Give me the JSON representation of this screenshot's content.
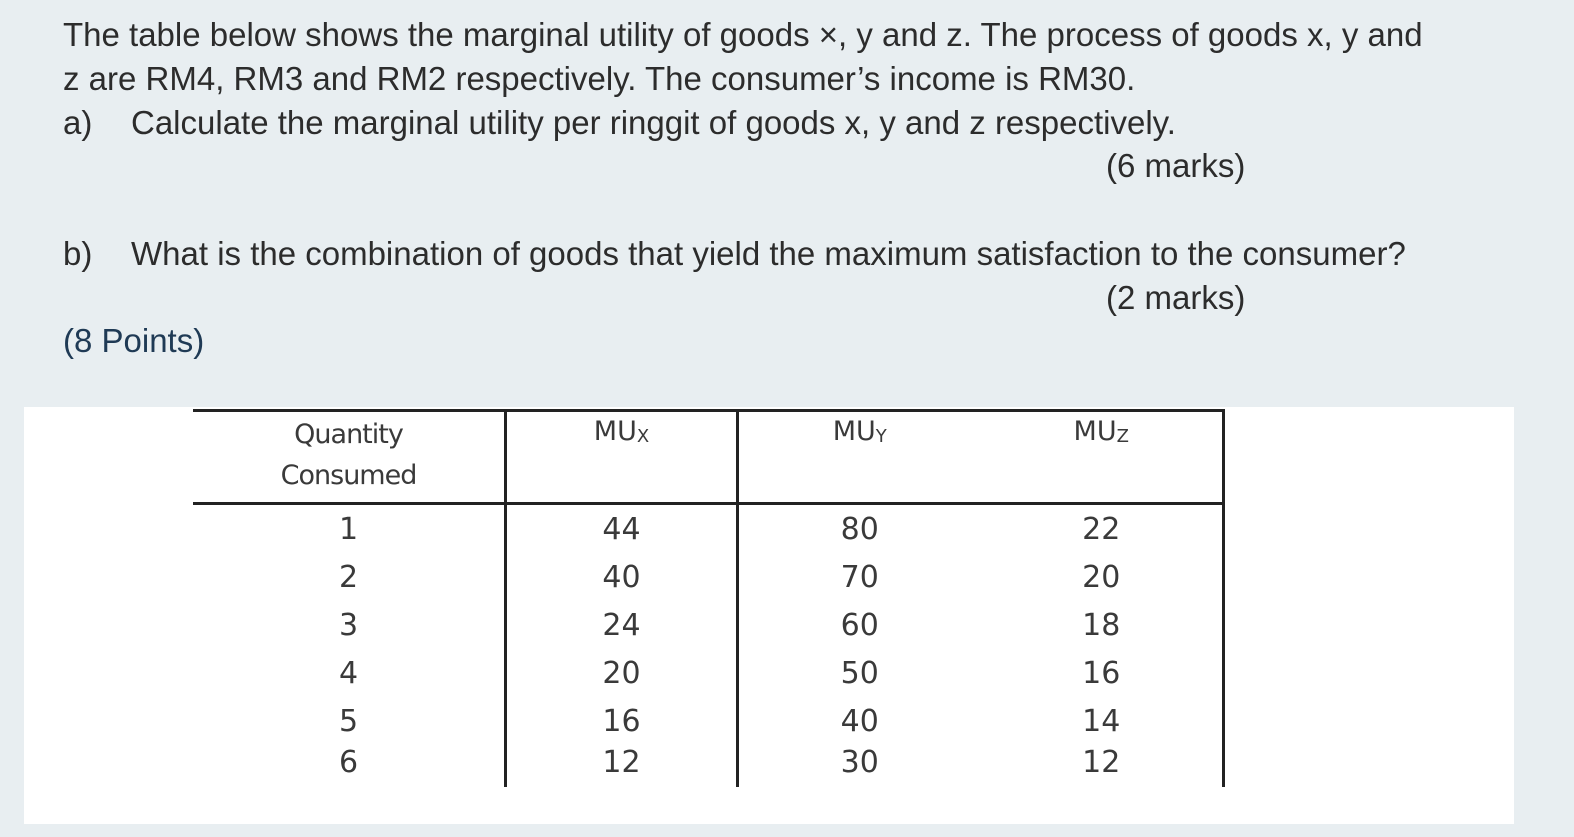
{
  "question": {
    "intro_line1": "The table below shows the marginal utility of goods ×, y and z. The process of goods x, y and",
    "intro_line2": "z are RM4, RM3 and RM2 respectively. The consumer’s income is RM30.",
    "part_a": {
      "letter": "a)",
      "text": "Calculate the marginal utility per ringgit of goods x, y and z respectively.",
      "marks": "(6 marks)"
    },
    "part_b": {
      "letter": "b)",
      "text": "What is the combination of goods that yield the maximum satisfaction to the consumer?",
      "marks": "(2 marks)"
    },
    "points": "(8 Points)"
  },
  "table": {
    "headers": {
      "quantity_line1": "Quantity",
      "quantity_line2": "Consumed",
      "mu": "MU",
      "sub_x": "X",
      "sub_y": "Y",
      "sub_z": "Z"
    },
    "rows": [
      {
        "qty": "1",
        "mux": "44",
        "muy": "80",
        "muz": "22"
      },
      {
        "qty": "2",
        "mux": "40",
        "muy": "70",
        "muz": "20"
      },
      {
        "qty": "3",
        "mux": "24",
        "muy": "60",
        "muz": "18"
      },
      {
        "qty": "4",
        "mux": "20",
        "muy": "50",
        "muz": "16"
      },
      {
        "qty": "5",
        "mux": "16",
        "muy": "40",
        "muz": "14"
      },
      {
        "qty": "6",
        "mux": "12",
        "muy": "30",
        "muz": "12"
      }
    ]
  }
}
